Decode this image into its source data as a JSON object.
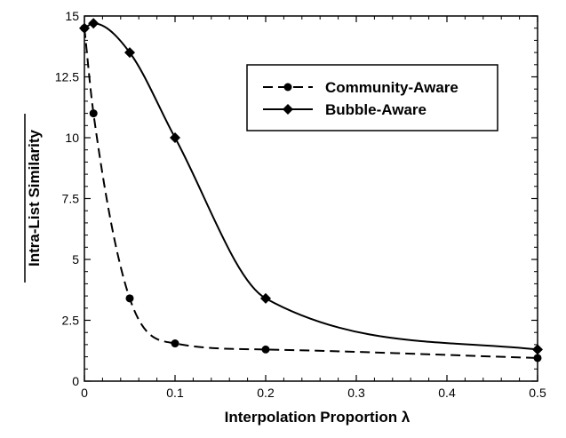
{
  "chart_data": {
    "type": "line",
    "xlabel": "Interpolation Proportion λ",
    "ylabel": "Intra-List Similarity",
    "xlim": [
      0,
      0.5
    ],
    "ylim": [
      0,
      15
    ],
    "x_ticks": [
      "0",
      "0.1",
      "0.2",
      "0.3",
      "0.4",
      "0.5"
    ],
    "y_ticks": [
      "0",
      "2.5",
      "5",
      "7.5",
      "10",
      "12.5",
      "15"
    ],
    "grid": false,
    "legend_position": "top-right",
    "series": [
      {
        "name": "Community-Aware",
        "style": "dashed",
        "marker": "circle",
        "color": "#000000",
        "x": [
          0,
          0.01,
          0.05,
          0.1,
          0.2,
          0.5
        ],
        "y": [
          14.5,
          11.0,
          3.4,
          1.55,
          1.3,
          0.95
        ]
      },
      {
        "name": "Bubble-Aware",
        "style": "solid",
        "marker": "diamond",
        "color": "#000000",
        "x": [
          0,
          0.01,
          0.05,
          0.1,
          0.2,
          0.5
        ],
        "y": [
          14.5,
          14.7,
          13.5,
          10.0,
          3.4,
          1.3
        ]
      }
    ]
  }
}
